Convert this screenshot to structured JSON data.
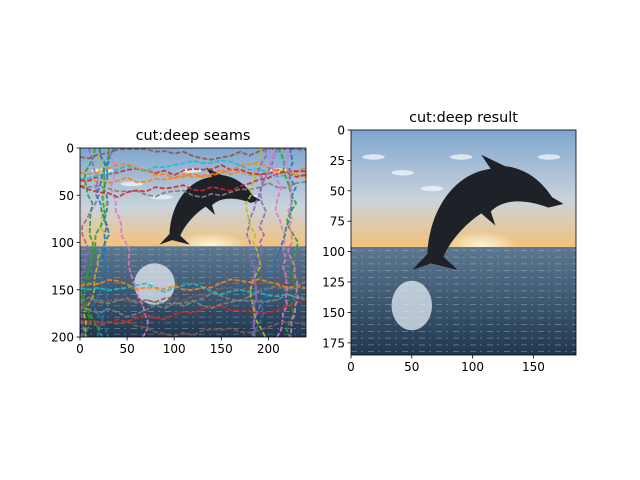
{
  "chart_data": [
    {
      "type": "image",
      "title": "cut:deep seams",
      "xlim": [
        0,
        240
      ],
      "ylim": [
        200,
        0
      ],
      "xticks": [
        0,
        50,
        100,
        150,
        200
      ],
      "yticks": [
        0,
        50,
        100,
        150,
        200
      ],
      "image_subject": "dolphin leaping over ocean at sunset",
      "overlay": "multicolored seam lines"
    },
    {
      "type": "image",
      "title": "cut:deep result",
      "xlim": [
        0,
        185
      ],
      "ylim": [
        185,
        0
      ],
      "xticks": [
        0,
        50,
        100,
        150
      ],
      "yticks": [
        0,
        25,
        50,
        75,
        100,
        125,
        150,
        175
      ],
      "image_subject": "dolphin leaping over ocean at sunset"
    }
  ],
  "colors": {
    "sky_top": "#7fa6cf",
    "sky_horizon": "#f3c27a",
    "sun": "#fff6d8",
    "sea_top": "#5d7891",
    "sea_bottom": "#1f3850",
    "dolphin": "#1e2228",
    "seams": [
      "#1f77b4",
      "#ff7f0e",
      "#2ca02c",
      "#d62728",
      "#9467bd",
      "#8c564b",
      "#e377c2",
      "#7f7f7f",
      "#bcbd22",
      "#17becf"
    ]
  }
}
